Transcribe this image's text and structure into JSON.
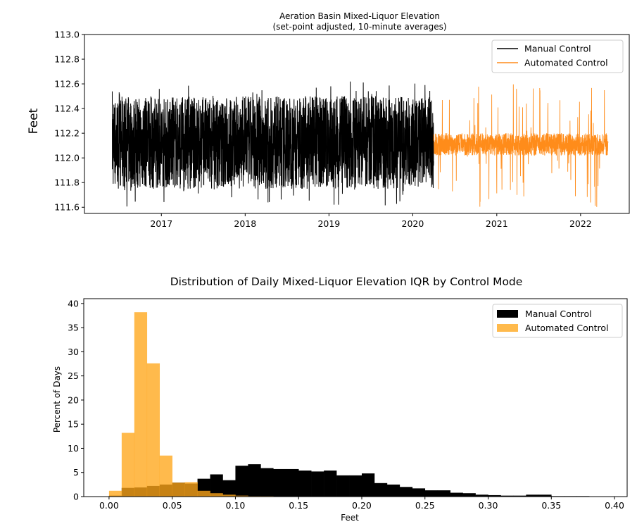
{
  "chart_data": [
    {
      "type": "line",
      "title": "Aeration Basin Mixed-Liquor Elevation",
      "subtitle": "(set-point adjusted, 10-minute averages)",
      "xlabel": "",
      "ylabel": "Feet",
      "xlim": [
        "2016-02-01",
        "2022-08-01"
      ],
      "ylim": [
        111.55,
        113.0
      ],
      "yticks": [
        111.6,
        111.8,
        112.0,
        112.2,
        112.4,
        112.6,
        112.8,
        113.0
      ],
      "ytick_labels": [
        "111.6",
        "111.8",
        "112.0",
        "112.2",
        "112.4",
        "112.6",
        "112.8",
        "113.0"
      ],
      "xticks": [
        "2017-01-01",
        "2018-01-01",
        "2019-01-01",
        "2020-01-01",
        "2021-01-01",
        "2022-01-01"
      ],
      "xtick_labels": [
        "2017",
        "2018",
        "2019",
        "2020",
        "2021",
        "2022"
      ],
      "grid": false,
      "legend": "top-right",
      "series": [
        {
          "name": "Manual Control",
          "color": "#000000",
          "x_range": [
            "2016-06-01",
            "2020-04-01"
          ],
          "baseline": 112.15,
          "band": [
            111.6,
            112.62
          ],
          "typical_band": [
            111.75,
            112.5
          ]
        },
        {
          "name": "Automated Control",
          "color": "#ff8c1a",
          "x_range": [
            "2020-04-01",
            "2022-05-01"
          ],
          "baseline": 112.1,
          "band": [
            111.6,
            112.6
          ],
          "typical_band": [
            112.02,
            112.2
          ]
        }
      ]
    },
    {
      "type": "bar",
      "title": "Distribution of Daily Mixed-Liquor Elevation IQR by Control Mode",
      "xlabel": "Feet",
      "ylabel": "Percent of Days",
      "xlim": [
        -0.02,
        0.41
      ],
      "ylim": [
        0,
        41
      ],
      "xticks": [
        0.0,
        0.05,
        0.1,
        0.15,
        0.2,
        0.25,
        0.3,
        0.35,
        0.4
      ],
      "xtick_labels": [
        "0.00",
        "0.05",
        "0.10",
        "0.15",
        "0.20",
        "0.25",
        "0.30",
        "0.35",
        "0.40"
      ],
      "yticks": [
        0,
        5,
        10,
        15,
        20,
        25,
        30,
        35,
        40
      ],
      "ytick_labels": [
        "0",
        "5",
        "10",
        "15",
        "20",
        "25",
        "30",
        "35",
        "40"
      ],
      "bin_width": 0.01,
      "bin_starts": [
        0.0,
        0.01,
        0.02,
        0.03,
        0.04,
        0.05,
        0.06,
        0.07,
        0.08,
        0.09,
        0.1,
        0.11,
        0.12,
        0.13,
        0.14,
        0.15,
        0.16,
        0.17,
        0.18,
        0.19,
        0.2,
        0.21,
        0.22,
        0.23,
        0.24,
        0.25,
        0.26,
        0.27,
        0.28,
        0.29,
        0.3,
        0.31,
        0.32,
        0.33,
        0.34,
        0.35,
        0.36,
        0.37,
        0.38,
        0.39
      ],
      "grid": false,
      "legend": "top-right",
      "series": [
        {
          "name": "Manual Control",
          "color": "#000000",
          "alpha": 1.0,
          "values": [
            0.2,
            1.8,
            1.9,
            2.2,
            2.5,
            2.9,
            2.7,
            3.7,
            4.6,
            3.4,
            6.4,
            6.7,
            5.9,
            5.7,
            5.7,
            5.4,
            5.2,
            5.4,
            4.4,
            4.4,
            4.8,
            2.8,
            2.5,
            2.0,
            1.7,
            1.3,
            1.3,
            0.8,
            0.7,
            0.4,
            0.3,
            0.2,
            0.2,
            0.4,
            0.4,
            0.1,
            0.1,
            0.1,
            0.05,
            0.05
          ]
        },
        {
          "name": "Automated Control",
          "color": "#ffa61a",
          "alpha": 0.78,
          "values": [
            1.2,
            13.2,
            38.2,
            27.6,
            8.5,
            2.9,
            3.0,
            1.2,
            0.7,
            0.4,
            0.2,
            0.1,
            0.1,
            0,
            0,
            0,
            0,
            0,
            0,
            0,
            0,
            0,
            0,
            0,
            0,
            0,
            0,
            0,
            0,
            0,
            0,
            0,
            0,
            0,
            0,
            0,
            0,
            0,
            0,
            0
          ]
        }
      ]
    }
  ]
}
